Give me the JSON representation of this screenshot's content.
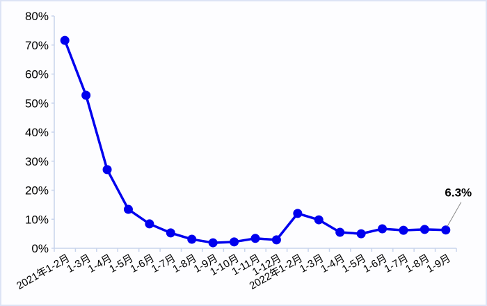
{
  "chart_data": {
    "type": "line",
    "title": "",
    "xlabel": "",
    "ylabel": "",
    "ylim": [
      0,
      80
    ],
    "yticks": [
      "0%",
      "10%",
      "20%",
      "30%",
      "40%",
      "50%",
      "60%",
      "70%",
      "80%"
    ],
    "grid": false,
    "legend": "none",
    "line_color": "#0000ee",
    "categories": [
      "2021年1-2月",
      "1-3月",
      "1-4月",
      "1-5月",
      "1-6月",
      "1-7月",
      "1-8月",
      "1-9月",
      "1-10月",
      "1-11月",
      "1-12月",
      "2022年1-2月",
      "1-3月",
      "1-4月",
      "1-5月",
      "1-6月",
      "1-7月",
      "1-8月",
      "1-9月"
    ],
    "series": [
      {
        "values": [
          71.6,
          52.7,
          27.1,
          13.4,
          8.4,
          5.3,
          3.1,
          1.9,
          2.2,
          3.4,
          2.9,
          12.0,
          9.8,
          5.5,
          5.0,
          6.7,
          6.2,
          6.5,
          6.3
        ]
      }
    ],
    "annotations": [
      {
        "category_index": 18,
        "text": "6.3%"
      }
    ]
  }
}
